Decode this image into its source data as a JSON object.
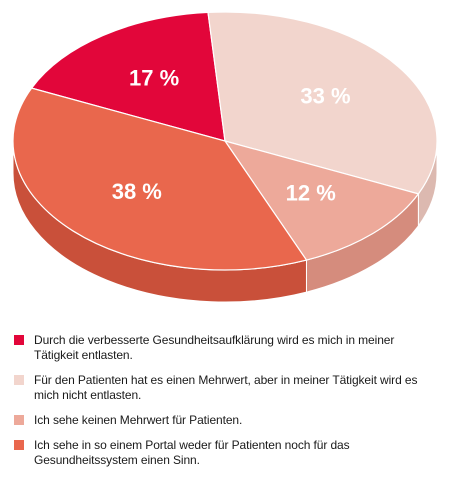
{
  "chart_data": {
    "type": "pie",
    "style": "3d",
    "slices": [
      {
        "value": 17,
        "label": "17 %",
        "legend": "Durch die verbesserte Gesundheitsaufklärung wird es mich in meiner Tätigkeit entlasten.",
        "color": "#e2063a",
        "side_color": "#b8052f"
      },
      {
        "value": 33,
        "label": "33 %",
        "legend": "Für den Patienten hat es einen Mehrwert, aber in meiner Tätigkeit wird es mich nicht entlasten.",
        "color": "#f2d5cd",
        "side_color": "#dcb9b0"
      },
      {
        "value": 12,
        "label": "12 %",
        "legend": "Ich sehe keinen Mehrwert für Patienten.",
        "color": "#eda99a",
        "side_color": "#d58c7d"
      },
      {
        "value": 38,
        "label": "38 %",
        "legend": "Ich sehe in so einem Portal weder für Patienten noch für das Gesundheitssystem einen Sinn.",
        "color": "#e9674d",
        "side_color": "#c9503a"
      }
    ]
  }
}
